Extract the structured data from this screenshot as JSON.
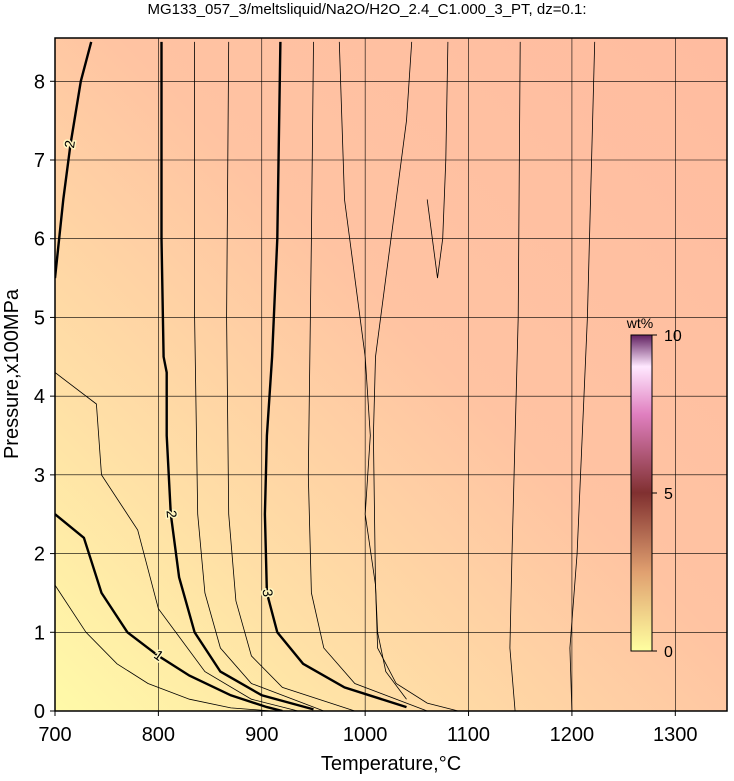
{
  "chart_data": {
    "type": "contour",
    "title": "MG133_057_3/meltsliquid/Na2O/H2O_2.4_C1.000_3_PT, dz=0.1:",
    "x_label": "Temperature,°C",
    "y_label": "Pressure,x100MPa",
    "xlim": [
      700,
      1350
    ],
    "ylim": [
      0,
      8.55
    ],
    "xticks": [
      700,
      800,
      900,
      1000,
      1100,
      1200,
      1300
    ],
    "yticks": [
      0,
      1,
      2,
      3,
      4,
      5,
      6,
      7,
      8
    ],
    "grid": true,
    "colorbar": {
      "label": "wt%",
      "lim": [
        0,
        10
      ],
      "ticks": [
        0,
        5,
        10
      ]
    },
    "contours": [
      {
        "level": 1,
        "x": [
          700,
          728,
          745,
          770,
          800,
          830,
          870,
          905,
          920
        ],
        "y": [
          2.5,
          2.2,
          1.5,
          1.0,
          0.7,
          0.45,
          0.2,
          0.05,
          0
        ]
      },
      {
        "level": 1.5,
        "x": [
          700,
          730,
          760,
          790,
          830,
          870,
          910
        ],
        "y": [
          1.6,
          1.0,
          0.6,
          0.35,
          0.15,
          0.04,
          0
        ]
      },
      {
        "level": 1.5,
        "x": [
          700,
          740,
          745,
          780,
          800,
          845,
          890,
          935
        ],
        "y": [
          4.3,
          3.9,
          3.0,
          2.3,
          1.3,
          0.5,
          0.15,
          0
        ]
      },
      {
        "level": 2,
        "x": [
          803,
          803,
          805,
          808,
          808,
          812,
          820,
          835,
          860,
          900,
          950
        ],
        "y": [
          8.5,
          6,
          4.5,
          4.3,
          3.5,
          2.5,
          1.7,
          1.0,
          0.5,
          0.2,
          0.02
        ]
      },
      {
        "level": 2,
        "x": [
          700,
          708,
          715,
          725,
          735
        ],
        "y": [
          5.5,
          6.5,
          7.2,
          8.0,
          8.5
        ]
      },
      {
        "level": 2.3,
        "x": [
          835,
          835,
          838,
          845,
          860,
          890,
          960
        ],
        "y": [
          8.5,
          5,
          2.5,
          1.5,
          0.8,
          0.35,
          0
        ]
      },
      {
        "level": 2.6,
        "x": [
          868,
          866,
          868,
          875,
          890,
          920,
          990
        ],
        "y": [
          8.5,
          5,
          2.5,
          1.4,
          0.7,
          0.3,
          0
        ]
      },
      {
        "level": 3,
        "x": [
          918,
          915,
          910,
          905,
          903,
          905,
          915,
          940,
          980,
          1040
        ],
        "y": [
          8.5,
          6,
          4.5,
          3.5,
          2.5,
          1.5,
          1.0,
          0.6,
          0.3,
          0.05
        ]
      },
      {
        "level": 3.3,
        "x": [
          950,
          948,
          945,
          948,
          960,
          990,
          1060
        ],
        "y": [
          8.5,
          6,
          3,
          1.5,
          0.8,
          0.35,
          0
        ]
      },
      {
        "level": 3.5,
        "x": [
          975,
          980,
          1000,
          1005,
          1000,
          1010,
          1012,
          1030,
          1060,
          1090
        ],
        "y": [
          8.5,
          6.5,
          4.5,
          3.5,
          2.5,
          1.6,
          0.8,
          0.35,
          0.1,
          0
        ]
      },
      {
        "level": 3.6,
        "x": [
          1045,
          1040,
          1030,
          1020,
          1010,
          1008,
          1010,
          1012,
          1020,
          1040
        ],
        "y": [
          8.5,
          7.5,
          6.5,
          5.5,
          4.5,
          3.5,
          1.6,
          1.0,
          0.5,
          0.15
        ]
      },
      {
        "level": 3.6,
        "x": [
          1080,
          1078,
          1075,
          1070,
          1060
        ],
        "y": [
          8.5,
          7.0,
          6.0,
          5.5,
          6.5
        ]
      },
      {
        "level": 3.7,
        "x": [
          1150,
          1148,
          1142,
          1140,
          1145
        ],
        "y": [
          8.5,
          5,
          2,
          0.8,
          0
        ]
      },
      {
        "level": 3.8,
        "x": [
          1222,
          1215,
          1205,
          1198,
          1200
        ],
        "y": [
          8.5,
          5,
          2,
          0.8,
          0
        ]
      }
    ]
  }
}
